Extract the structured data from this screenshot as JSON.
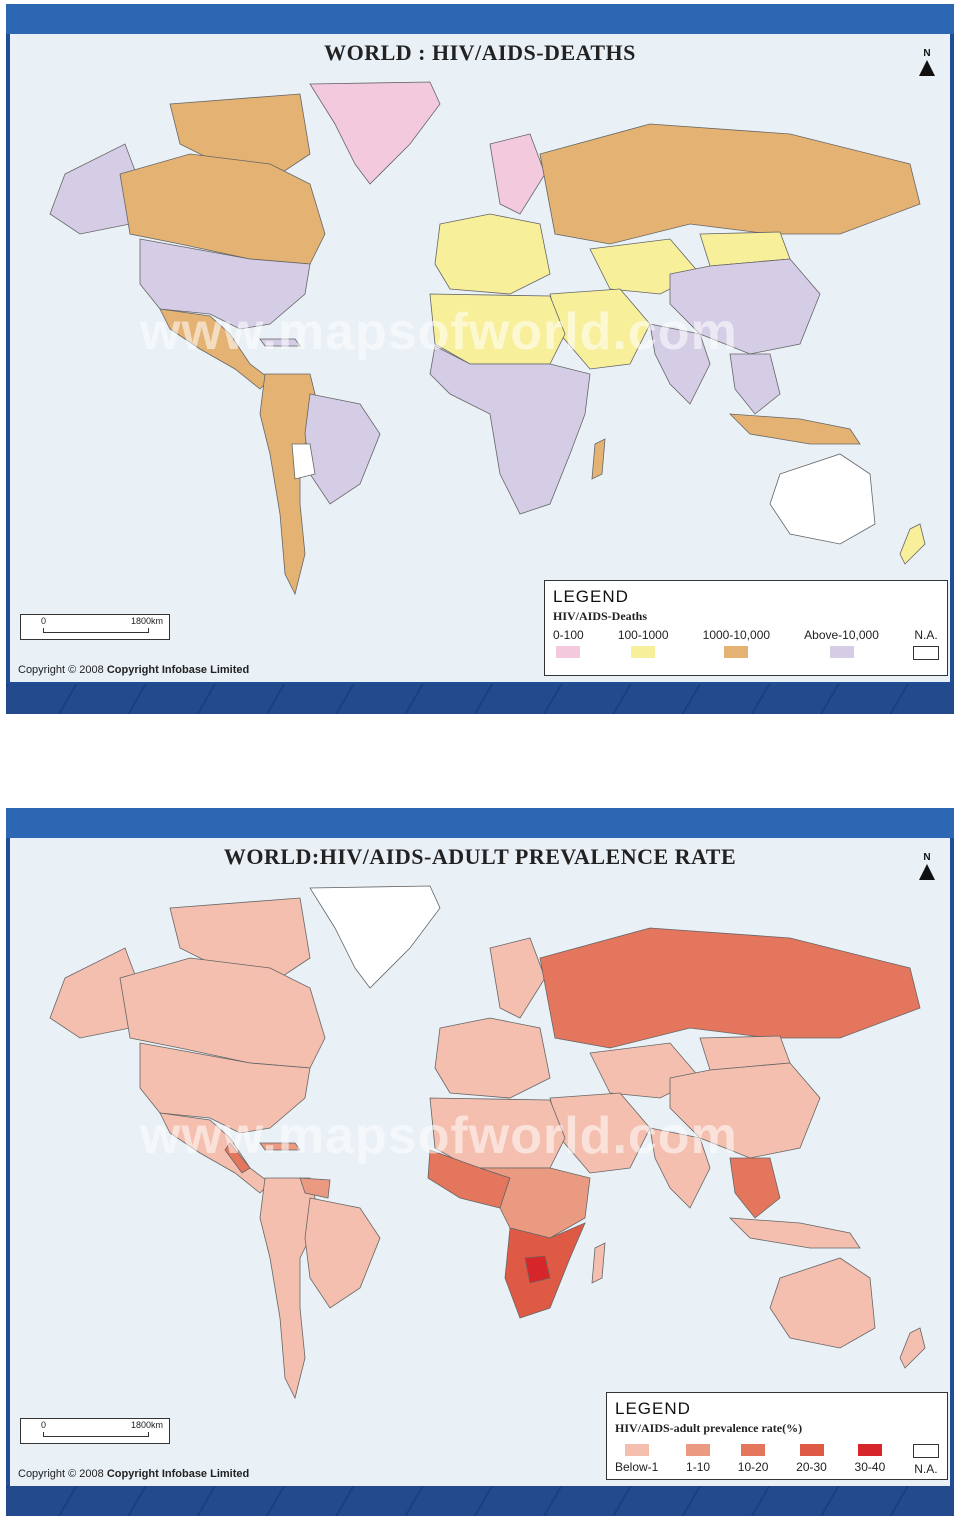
{
  "map1": {
    "title": "WORLD : HIV/AIDS-DEATHS",
    "north_label": "N",
    "watermark": "www.mapsofworld.com",
    "scale": {
      "start": "0",
      "end": "1800km"
    },
    "copyright_prefix": "Copyright © 2008",
    "copyright_owner": "Copyright Infobase Limited",
    "legend": {
      "title": "LEGEND",
      "subtitle": "HIV/AIDS-Deaths",
      "items": [
        {
          "label": "0-100",
          "color": "#f3c9de"
        },
        {
          "label": "100-1000",
          "color": "#f8ef9b"
        },
        {
          "label": "1000-10,000",
          "color": "#e4b272"
        },
        {
          "label": "Above-10,000",
          "color": "#d5cde6"
        },
        {
          "label": "N.A.",
          "color": "#ffffff"
        }
      ]
    }
  },
  "map2": {
    "title": "WORLD:HIV/AIDS-ADULT PREVALENCE RATE",
    "north_label": "N",
    "watermark": "www.mapsofworld.com",
    "scale": {
      "start": "0",
      "end": "1800km"
    },
    "copyright_prefix": "Copyright © 2008",
    "copyright_owner": "Copyright Infobase Limited",
    "legend": {
      "title": "LEGEND",
      "subtitle": "HIV/AIDS-adult prevalence rate(%)",
      "items": [
        {
          "label": "Below-1",
          "color": "#f4bfae"
        },
        {
          "label": "1-10",
          "color": "#eb9a82"
        },
        {
          "label": "10-20",
          "color": "#e4765d"
        },
        {
          "label": "20-30",
          "color": "#df5a45"
        },
        {
          "label": "30-40",
          "color": "#d7262a"
        },
        {
          "label": "N.A.",
          "color": "#ffffff"
        }
      ]
    }
  }
}
